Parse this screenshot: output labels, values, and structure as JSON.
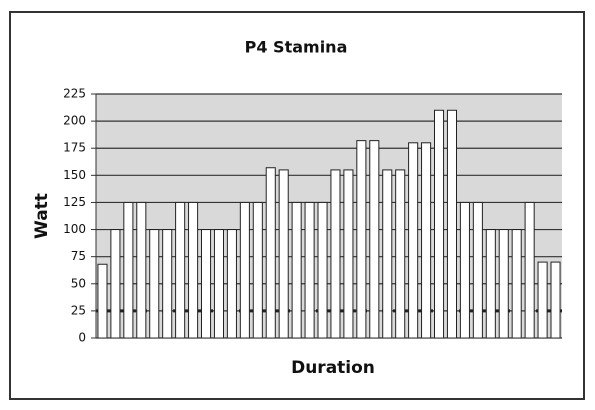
{
  "chart_data": {
    "type": "bar",
    "title": "P4 Stamina",
    "x_label": "Duration",
    "y_label": "Watt",
    "categories": [
      null,
      null,
      null,
      null,
      null,
      null,
      null,
      null,
      null,
      null,
      null,
      null,
      null,
      null,
      null,
      null,
      null,
      null,
      null,
      null,
      null,
      null,
      null,
      null,
      null,
      null,
      null,
      null,
      null,
      null,
      null,
      null,
      null,
      null,
      null,
      null
    ],
    "values": [
      68,
      100,
      125,
      125,
      100,
      100,
      125,
      125,
      100,
      100,
      100,
      125,
      125,
      157,
      155,
      125,
      125,
      125,
      155,
      155,
      182,
      182,
      155,
      155,
      180,
      180,
      210,
      210,
      125,
      125,
      100,
      100,
      100,
      125,
      70,
      70
    ],
    "color": "#ffffff",
    "ylim": [
      0,
      225
    ],
    "yticks": [
      0,
      25,
      50,
      75,
      100,
      125,
      150,
      175,
      200,
      225
    ],
    "grid": true,
    "reference_line": 25
  }
}
